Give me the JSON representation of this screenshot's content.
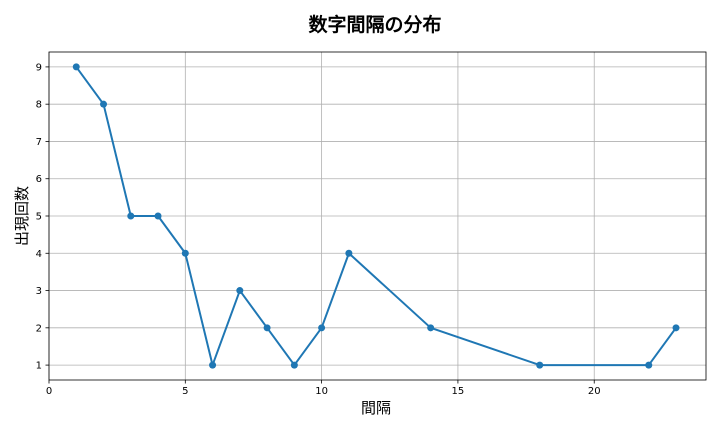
{
  "chart_data": {
    "type": "line",
    "title": "数字間隔の分布",
    "xlabel": "間隔",
    "ylabel": "出現回数",
    "x": [
      1,
      2,
      3,
      4,
      5,
      6,
      7,
      8,
      9,
      10,
      11,
      14,
      18,
      22,
      23
    ],
    "series": [
      {
        "values": [
          9,
          8,
          5,
          5,
          4,
          1,
          3,
          2,
          1,
          2,
          4,
          2,
          1,
          1,
          2
        ]
      }
    ],
    "xlim": [
      0,
      24.1
    ],
    "ylim": [
      0.6,
      9.4
    ],
    "xticks": [
      0,
      5,
      10,
      15,
      20
    ],
    "yticks": [
      1,
      2,
      3,
      4,
      5,
      6,
      7,
      8,
      9
    ],
    "grid": true,
    "colors": {
      "line": "#1f77b4",
      "grid": "#b0b0b0",
      "axis": "#000000"
    }
  }
}
